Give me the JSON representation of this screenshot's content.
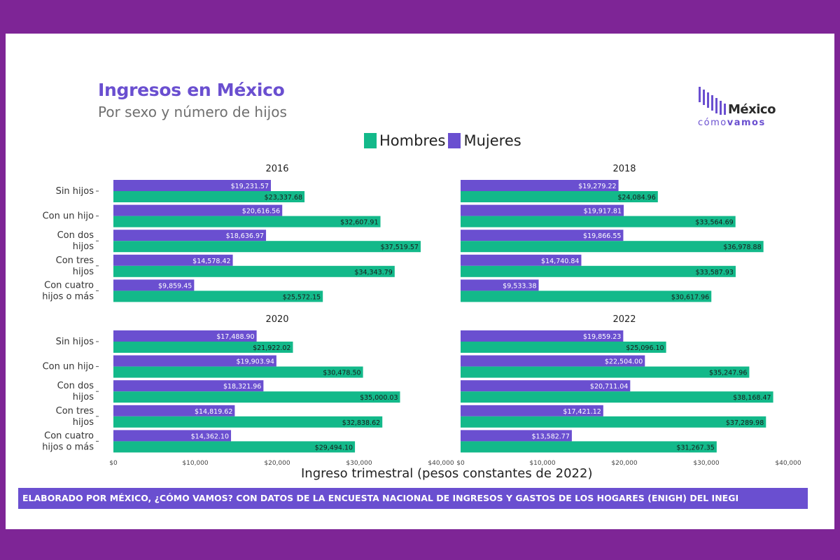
{
  "header": {
    "title": "Ingresos en México",
    "subtitle": "Por sexo y número de hijos"
  },
  "logo": {
    "name": "México",
    "tagline_light": "cómo",
    "tagline_bold": "vamos"
  },
  "legend": [
    {
      "label": "Hombres",
      "color": "#13b98a"
    },
    {
      "label": "Mujeres",
      "color": "#6a4fd0"
    }
  ],
  "footer": "ELABORADO POR MÉXICO, ¿CÓMO VAMOS? CON DATOS DE LA ENCUESTA NACIONAL DE INGRESOS Y GASTOS DE LOS HOGARES (ENIGH) DEL INEGI",
  "chart_data": {
    "type": "bar",
    "orientation": "horizontal",
    "xlabel": "Ingreso trimestral (pesos constantes de 2022)",
    "xlim": [
      0,
      40000
    ],
    "xticks": [
      "$0",
      "$10,000",
      "$20,000",
      "$30,000",
      "$40,000"
    ],
    "categories": [
      [
        "Sin hijos"
      ],
      [
        "Con un hijo"
      ],
      [
        "Con dos",
        "hijos"
      ],
      [
        "Con tres",
        "hijos"
      ],
      [
        "Con cuatro",
        "hijos o más"
      ]
    ],
    "colors": {
      "Hombres": "#13b98a",
      "Mujeres": "#6a4fd0"
    },
    "panels": [
      {
        "year": "2016",
        "mujeres": [
          19231.57,
          20616.56,
          18636.97,
          14578.42,
          9859.45
        ],
        "mujeres_labels": [
          "$19,231.57",
          "$20,616.56",
          "$18,636.97",
          "$14,578.42",
          "$9,859.45"
        ],
        "hombres": [
          23337.68,
          32607.91,
          37519.57,
          34343.79,
          25572.15
        ],
        "hombres_labels": [
          "$23,337.68",
          "$32,607.91",
          "$37,519.57",
          "$34,343.79",
          "$25,572.15"
        ]
      },
      {
        "year": "2018",
        "mujeres": [
          19279.22,
          19917.81,
          19866.55,
          14740.84,
          9533.38
        ],
        "mujeres_labels": [
          "$19,279.22",
          "$19,917.81",
          "$19,866.55",
          "$14,740.84",
          "$9,533.38"
        ],
        "hombres": [
          24084.96,
          33564.69,
          36978.88,
          33587.93,
          30617.96
        ],
        "hombres_labels": [
          "$24,084.96",
          "$33,564.69",
          "$36,978.88",
          "$33,587.93",
          "$30,617.96"
        ]
      },
      {
        "year": "2020",
        "mujeres": [
          17488.9,
          19903.94,
          18321.96,
          14819.62,
          14362.1
        ],
        "mujeres_labels": [
          "$17,488.90",
          "$19,903.94",
          "$18,321.96",
          "$14,819.62",
          "$14,362.10"
        ],
        "hombres": [
          21922.02,
          30478.5,
          35000.03,
          32838.62,
          29494.1
        ],
        "hombres_labels": [
          "$21,922.02",
          "$30,478.50",
          "$35,000.03",
          "$32,838.62",
          "$29,494.10"
        ]
      },
      {
        "year": "2022",
        "mujeres": [
          19859.23,
          22504.0,
          20711.04,
          17421.12,
          13582.77
        ],
        "mujeres_labels": [
          "$19,859.23",
          "$22,504.00",
          "$20,711.04",
          "$17,421.12",
          "$13,582.77"
        ],
        "hombres": [
          25096.1,
          35247.96,
          38168.47,
          37289.98,
          31267.35
        ],
        "hombres_labels": [
          "$25,096.10",
          "$35,247.96",
          "$38,168.47",
          "$37,289.98",
          "$31,267.35"
        ]
      }
    ]
  }
}
